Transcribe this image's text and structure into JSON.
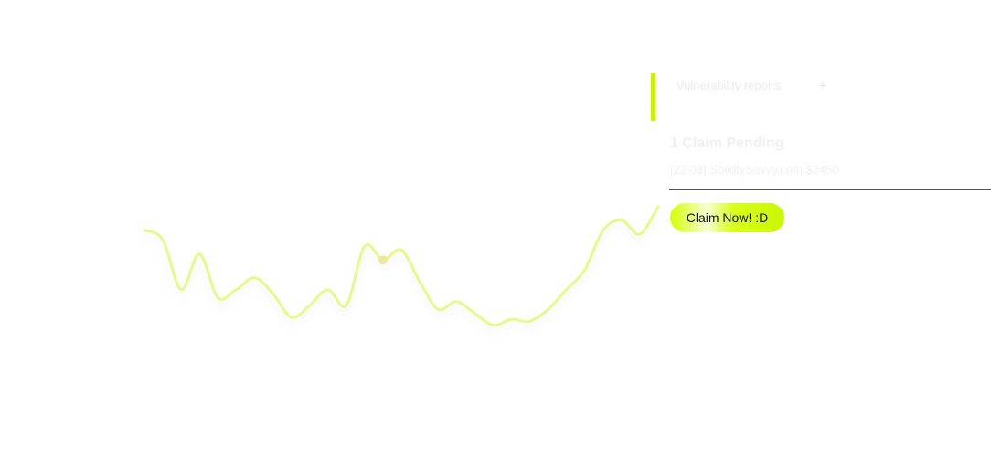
{
  "chart_data": {
    "type": "line",
    "x": [
      0,
      1,
      2,
      3,
      4,
      5,
      6,
      7,
      8,
      9,
      10,
      11,
      12,
      13,
      14,
      15,
      16,
      17,
      18,
      19,
      20,
      21,
      22,
      23,
      24,
      25,
      26,
      27,
      28
    ],
    "series": [
      {
        "values": [
          50,
          45,
          20,
          38,
          16,
          20,
          26,
          18,
          6,
          12,
          20,
          12,
          42,
          35,
          40,
          24,
          10,
          14,
          8,
          2,
          5,
          4,
          10,
          20,
          30,
          50,
          55,
          48,
          62
        ]
      }
    ],
    "highlight_index": 13,
    "ylim": [
      0,
      60
    ],
    "line_color": "#e6f98a",
    "marker_color": "#f0e6a0",
    "grid": false,
    "legend": "none",
    "xlabel": "",
    "ylabel": ""
  },
  "panel": {
    "accent_color": "#c8f400",
    "tab_label": "Vulnerability reports",
    "tab_plus": "+",
    "claim_title": "1 Claim Pending",
    "claim_detail": "[22.03] SolidtySavvy.com $2450",
    "claim_button_label": "Claim Now! :D"
  }
}
